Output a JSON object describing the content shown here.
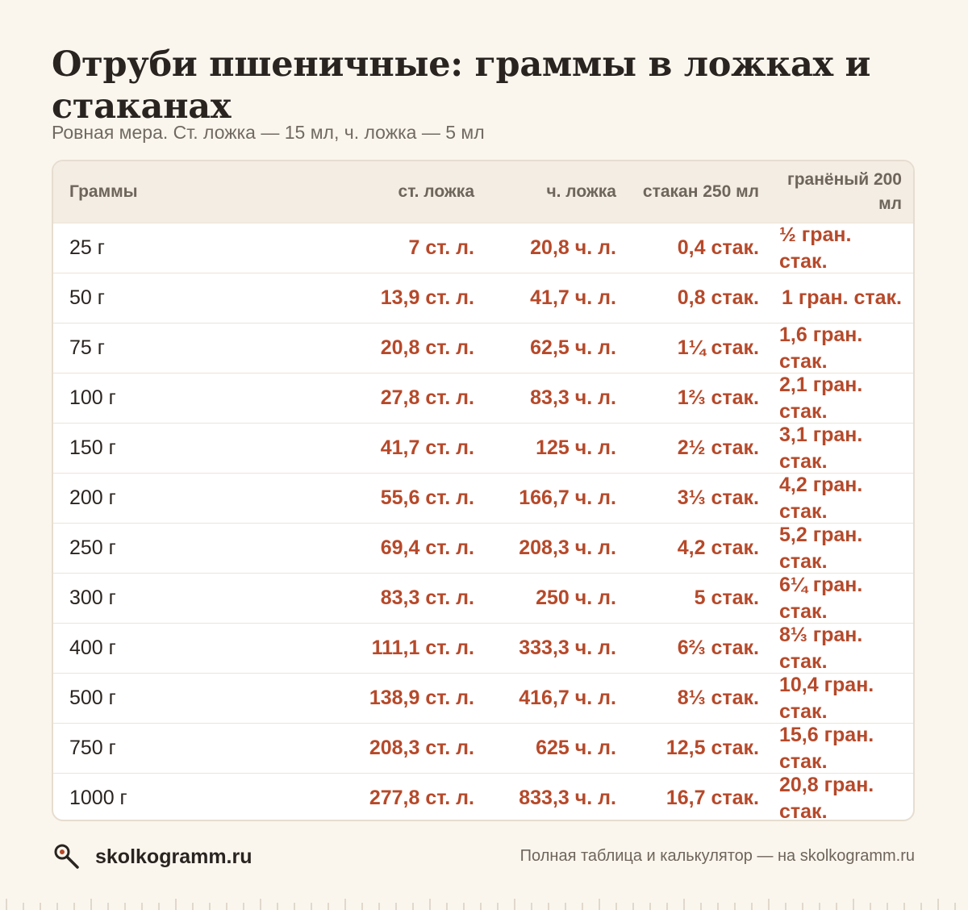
{
  "title": "Отруби пшеничные: граммы в ложках и стаканах",
  "subtitle": "Ровная мера. Ст. ложка — 15 мл, ч. ложка — 5 мл",
  "table": {
    "headers": [
      "Граммы",
      "ст. ложка",
      "ч. ложка",
      "стакан 250 мл",
      "гранёный 200 мл"
    ],
    "rows": [
      [
        "25 г",
        "7 ст. л.",
        "20,8 ч. л.",
        "0,4 стак.",
        "½ гран. стак."
      ],
      [
        "50 г",
        "13,9 ст. л.",
        "41,7 ч. л.",
        "0,8 стак.",
        "1 гран. стак."
      ],
      [
        "75 г",
        "20,8 ст. л.",
        "62,5 ч. л.",
        "1¼ стак.",
        "1,6 гран. стак."
      ],
      [
        "100 г",
        "27,8 ст. л.",
        "83,3 ч. л.",
        "1⅔ стак.",
        "2,1 гран. стак."
      ],
      [
        "150 г",
        "41,7 ст. л.",
        "125 ч. л.",
        "2½ стак.",
        "3,1 гран. стак."
      ],
      [
        "200 г",
        "55,6 ст. л.",
        "166,7 ч. л.",
        "3⅓ стак.",
        "4,2 гран. стак."
      ],
      [
        "250 г",
        "69,4 ст. л.",
        "208,3 ч. л.",
        "4,2 стак.",
        "5,2 гран. стак."
      ],
      [
        "300 г",
        "83,3 ст. л.",
        "250 ч. л.",
        "5 стак.",
        "6¼ гран. стак."
      ],
      [
        "400 г",
        "111,1 ст. л.",
        "333,3 ч. л.",
        "6⅔ стак.",
        "8⅓ гран. стак."
      ],
      [
        "500 г",
        "138,9 ст. л.",
        "416,7 ч. л.",
        "8⅓ стак.",
        "10,4 гран. стак."
      ],
      [
        "750 г",
        "208,3 ст. л.",
        "625 ч. л.",
        "12,5 стак.",
        "15,6 гран. стак."
      ],
      [
        "1000 г",
        "277,8 ст. л.",
        "833,3 ч. л.",
        "16,7 стак.",
        "20,8 гран. стак."
      ]
    ]
  },
  "footer": {
    "logo_text": "skolkogramm.ru",
    "note": "Полная таблица и калькулятор — на skolkogramm.ru"
  },
  "colors": {
    "background": "#faf6ee",
    "accent": "#b6492a",
    "header_bg": "#f3ede3",
    "text": "#2a2420",
    "muted": "#6e655b"
  },
  "icons": {
    "logo": "magnifier-spoon-icon"
  }
}
